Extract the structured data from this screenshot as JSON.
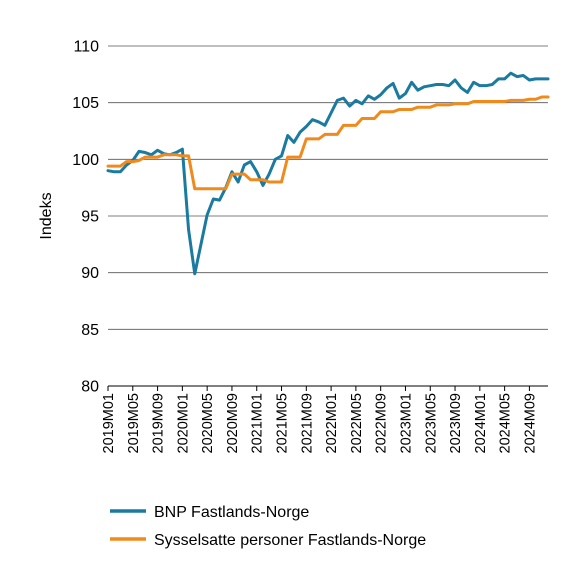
{
  "chart_data": {
    "type": "line",
    "ylabel": "Indeks",
    "xlabel": "",
    "ylim": [
      80,
      110
    ],
    "yticks": [
      80,
      85,
      90,
      95,
      100,
      105,
      110
    ],
    "grid": "horizontal",
    "legend_position": "bottom",
    "x": [
      "2019M01",
      "2019M02",
      "2019M03",
      "2019M04",
      "2019M05",
      "2019M06",
      "2019M07",
      "2019M08",
      "2019M09",
      "2019M10",
      "2019M11",
      "2019M12",
      "2020M01",
      "2020M02",
      "2020M03",
      "2020M04",
      "2020M05",
      "2020M06",
      "2020M07",
      "2020M08",
      "2020M09",
      "2020M10",
      "2020M11",
      "2020M12",
      "2021M01",
      "2021M02",
      "2021M03",
      "2021M04",
      "2021M05",
      "2021M06",
      "2021M07",
      "2021M08",
      "2021M09",
      "2021M10",
      "2021M11",
      "2021M12",
      "2022M01",
      "2022M02",
      "2022M03",
      "2022M04",
      "2022M05",
      "2022M06",
      "2022M07",
      "2022M08",
      "2022M09",
      "2022M10",
      "2022M11",
      "2022M12",
      "2023M01",
      "2023M02",
      "2023M03",
      "2023M04",
      "2023M05",
      "2023M06",
      "2023M07",
      "2023M08",
      "2023M09",
      "2023M10",
      "2023M11",
      "2023M12",
      "2024M01",
      "2024M02",
      "2024M03",
      "2024M04",
      "2024M05",
      "2024M06",
      "2024M07",
      "2024M08",
      "2024M09",
      "2024M10",
      "2024M11",
      "2024M12"
    ],
    "x_tick_labels": [
      "2019M01",
      "2019M05",
      "2019M09",
      "2020M01",
      "2020M05",
      "2020M09",
      "2021M01",
      "2021M05",
      "2021M09",
      "2022M01",
      "2022M05",
      "2022M09",
      "2023M01",
      "2023M05",
      "2023M09",
      "2024M01",
      "2024M05",
      "2024M09"
    ],
    "series": [
      {
        "name": "BNP Fastlands-Norge",
        "color": "#1a7aa0",
        "values": [
          99.0,
          98.9,
          98.9,
          99.5,
          99.9,
          100.7,
          100.6,
          100.4,
          100.8,
          100.5,
          100.4,
          100.6,
          100.9,
          93.8,
          89.9,
          92.5,
          95.1,
          96.5,
          96.4,
          97.5,
          98.9,
          98.0,
          99.5,
          99.8,
          98.9,
          97.7,
          98.7,
          100.0,
          100.3,
          102.1,
          101.5,
          102.4,
          102.9,
          103.5,
          103.3,
          103.0,
          104.1,
          105.2,
          105.4,
          104.7,
          105.2,
          104.9,
          105.6,
          105.3,
          105.7,
          106.3,
          106.7,
          105.4,
          105.8,
          106.8,
          106.1,
          106.4,
          106.5,
          106.6,
          106.6,
          106.5,
          107.0,
          106.3,
          105.9,
          106.8,
          106.5,
          106.5,
          106.6,
          107.1,
          107.1,
          107.6,
          107.3,
          107.4,
          107.0,
          107.1,
          107.1,
          107.1
        ]
      },
      {
        "name": "Sysselsatte personer Fastlands-Norge",
        "color": "#f08a1c",
        "values": [
          99.4,
          99.4,
          99.4,
          99.8,
          99.8,
          99.9,
          100.2,
          100.2,
          100.2,
          100.4,
          100.4,
          100.4,
          100.3,
          100.3,
          97.4,
          97.4,
          97.4,
          97.4,
          97.4,
          97.4,
          98.7,
          98.7,
          98.7,
          98.2,
          98.2,
          98.2,
          98.0,
          98.0,
          98.0,
          100.2,
          100.2,
          100.2,
          101.8,
          101.8,
          101.8,
          102.2,
          102.2,
          102.2,
          103.0,
          103.0,
          103.0,
          103.6,
          103.6,
          103.6,
          104.2,
          104.2,
          104.2,
          104.4,
          104.4,
          104.4,
          104.6,
          104.6,
          104.6,
          104.8,
          104.8,
          104.8,
          104.9,
          104.9,
          104.9,
          105.1,
          105.1,
          105.1,
          105.1,
          105.1,
          105.1,
          105.2,
          105.2,
          105.2,
          105.3,
          105.3,
          105.5,
          105.5
        ]
      }
    ]
  }
}
